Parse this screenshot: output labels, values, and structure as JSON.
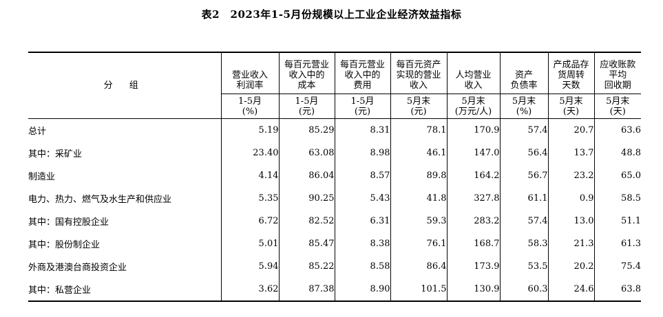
{
  "title": "表2　2023年1-5月份规模以上工业企业经济效益指标",
  "header": {
    "group": "分 组",
    "columns": [
      {
        "label": "营业收入\n利润率",
        "unit": "1-5月\n(%)"
      },
      {
        "label": "每百元营业\n收入中的\n成本",
        "unit": "1-5月\n(元)"
      },
      {
        "label": "每百元营业\n收入中的\n费用",
        "unit": "1-5月\n(元)"
      },
      {
        "label": "每百元资产\n实现的营业\n收入",
        "unit": "5月末\n(元)"
      },
      {
        "label": "人均营业\n收入",
        "unit": "5月末\n(万元/人)"
      },
      {
        "label": "资产\n负债率",
        "unit": "5月末\n(%)"
      },
      {
        "label": "产成品存\n货周转\n天数",
        "unit": "5月末\n(天)"
      },
      {
        "label": "应收账款\n平均\n回收期",
        "unit": "5月末\n(天)"
      }
    ]
  },
  "rows": [
    {
      "label": "总计",
      "values": [
        "5.19",
        "85.29",
        "8.31",
        "78.1",
        "170.9",
        "57.4",
        "20.7",
        "63.6"
      ]
    },
    {
      "label": "其中：采矿业",
      "values": [
        "23.40",
        "63.08",
        "8.98",
        "46.1",
        "147.0",
        "56.4",
        "13.7",
        "48.8"
      ]
    },
    {
      "label": "制造业",
      "values": [
        "4.14",
        "86.04",
        "8.57",
        "89.8",
        "164.2",
        "56.7",
        "23.2",
        "65.0"
      ]
    },
    {
      "label": "电力、热力、燃气及水生产和供应业",
      "values": [
        "5.35",
        "90.25",
        "5.43",
        "41.8",
        "327.8",
        "61.1",
        "0.9",
        "58.5"
      ]
    },
    {
      "label": "其中：国有控股企业",
      "values": [
        "6.72",
        "82.52",
        "6.31",
        "59.3",
        "283.2",
        "57.4",
        "13.0",
        "51.1"
      ]
    },
    {
      "label": "其中：股份制企业",
      "values": [
        "5.01",
        "85.47",
        "8.38",
        "76.1",
        "168.7",
        "58.3",
        "21.3",
        "61.3"
      ]
    },
    {
      "label": "外商及港澳台商投资企业",
      "values": [
        "5.94",
        "85.22",
        "8.58",
        "86.4",
        "173.9",
        "53.5",
        "20.2",
        "75.4"
      ]
    },
    {
      "label": "其中：私营企业",
      "values": [
        "3.62",
        "87.38",
        "8.90",
        "101.5",
        "130.9",
        "60.3",
        "24.6",
        "63.8"
      ]
    }
  ]
}
